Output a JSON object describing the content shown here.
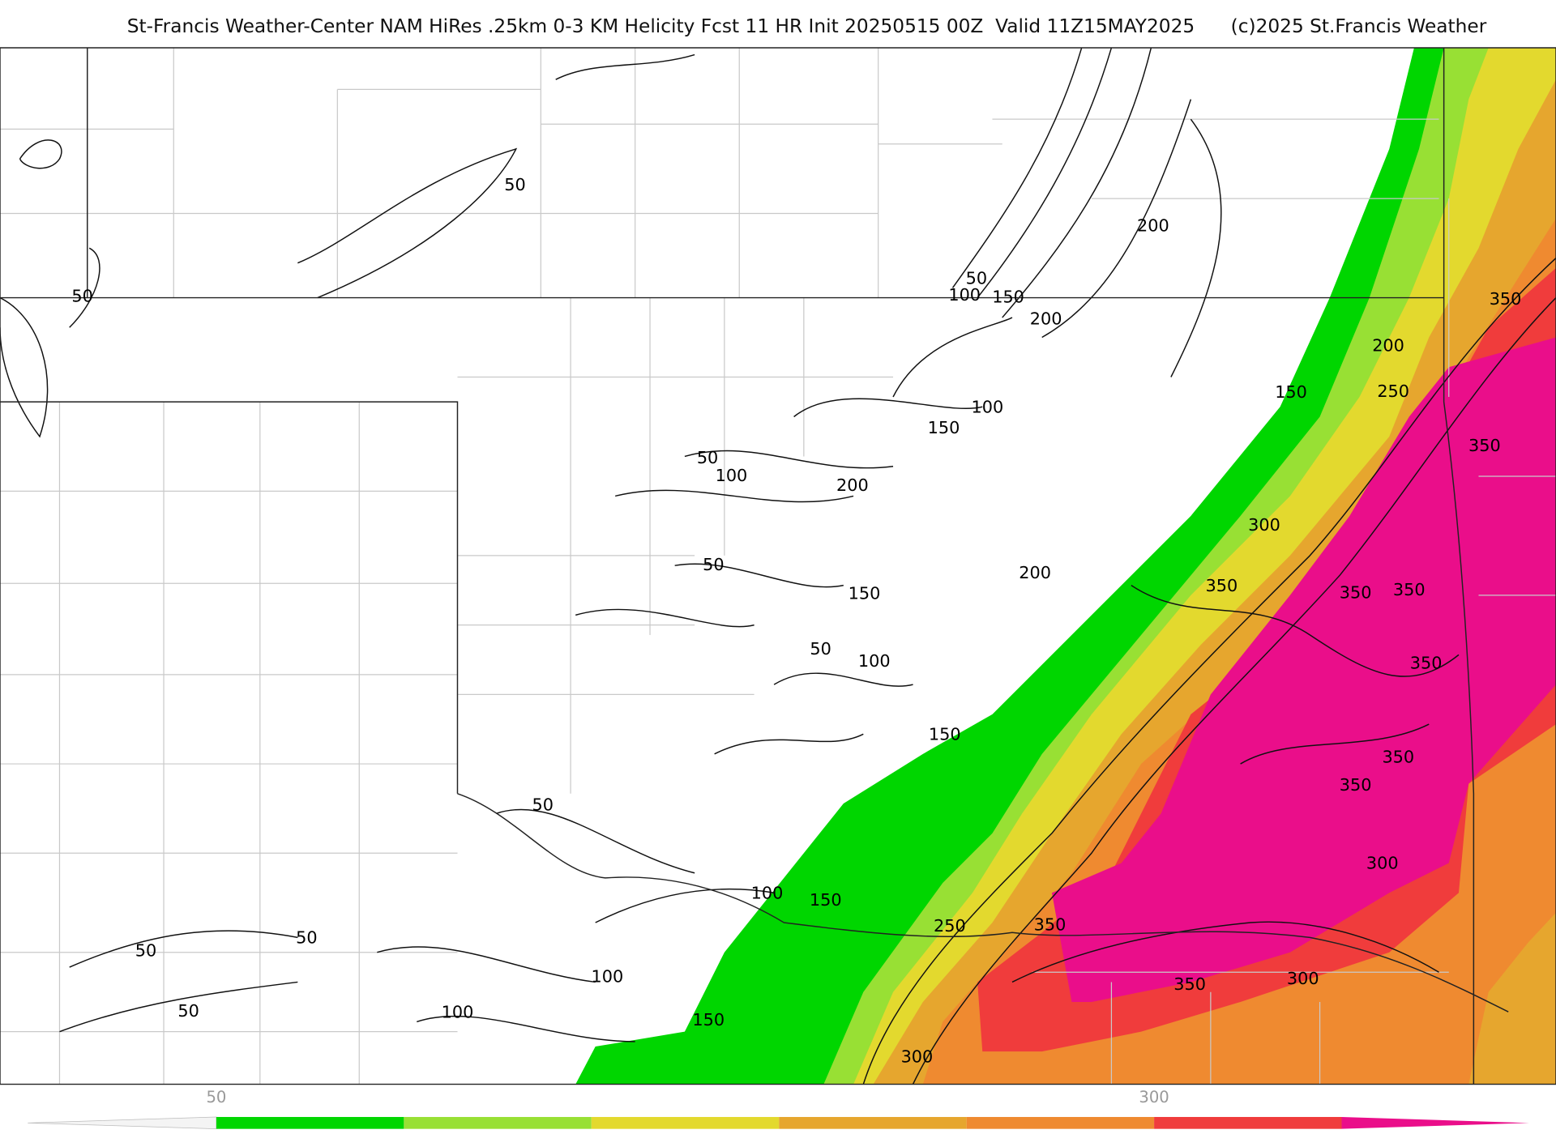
{
  "header": {
    "title": "St-Francis Weather-Center NAM HiRes .25km 0-3 KM Helicity Fcst 11 HR Init 20250515 00Z  Valid 11Z15MAY2025",
    "copyright": "(c)2025 St.Francis Weather"
  },
  "map": {
    "contour_labels": [
      50,
      50,
      50,
      100,
      150,
      200,
      200,
      350,
      200,
      250,
      150,
      100,
      150,
      350,
      50,
      100,
      200,
      300,
      200,
      50,
      350,
      150,
      350,
      350,
      50,
      100,
      350,
      150,
      350,
      50,
      350,
      300,
      100,
      150,
      250,
      350,
      50,
      50,
      100,
      300,
      350,
      50,
      100,
      150,
      300
    ],
    "fill_colors": [
      "#00d600",
      "#98e034",
      "#e3d92e",
      "#e6a62e",
      "#ef8a30",
      "#f03c3c",
      "#ea0e8a"
    ]
  },
  "colorbar": {
    "ticks": [
      50,
      300
    ],
    "colors": [
      "#00d600",
      "#98e034",
      "#e3d92e",
      "#e6a62e",
      "#ef8a30",
      "#f03c3c",
      "#ea0e8a"
    ]
  }
}
